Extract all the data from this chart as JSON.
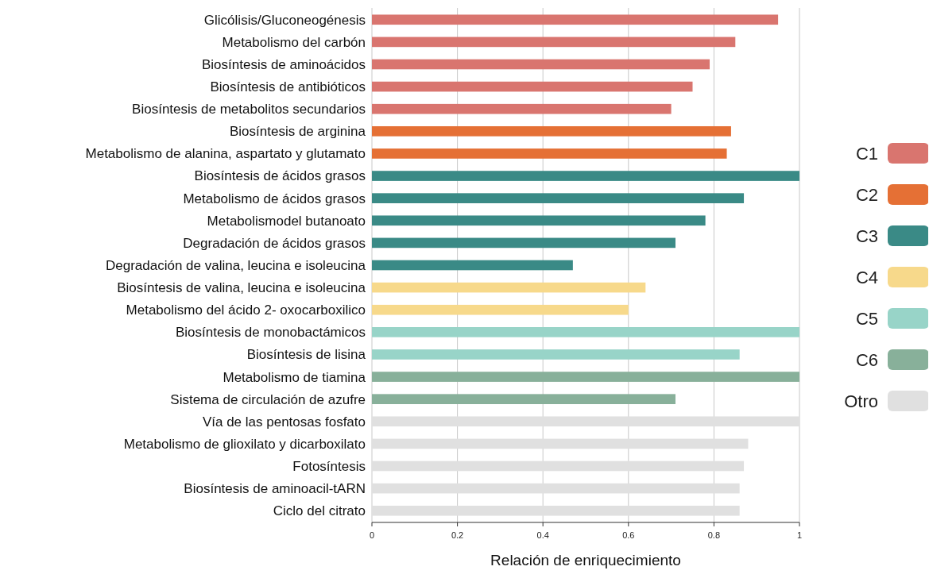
{
  "chart_data": {
    "type": "bar",
    "orientation": "horizontal",
    "xlabel": "Relación de enriquecimiento",
    "categories": [
      "Glicólisis/Gluconeogénesis",
      "Metabolismo del carbón",
      "Biosíntesis de aminoácidos",
      "Biosíntesis de antibióticos",
      "Biosíntesis de metabolitos secundarios",
      "Biosíntesis de arginina",
      "Metabolismo de alanina, aspartato y glutamato",
      "Biosíntesis de ácidos grasos",
      "Metabolismo de ácidos grasos",
      "Metabolismodel butanoato",
      "Degradación de ácidos grasos",
      "Degradación de valina, leucina e isoleucina",
      "Biosíntesis de valina, leucina e isoleucina",
      "Metabolismo del ácido 2- oxocarboxilico",
      "Biosíntesis de monobactámicos",
      "Biosíntesis de lisina",
      "Metabolismo de tiamina",
      "Sistema de circulación de azufre",
      "Vía de las pentosas fosfato",
      "Metabolismo de glioxilato y dicarboxilato",
      "Fotosíntesis",
      "Biosíntesis de aminoacil-tARN",
      "Ciclo del citrato"
    ],
    "series": [
      {
        "name": "C1",
        "color": "#d9756f",
        "values": [
          0.95,
          0.85,
          0.79,
          0.75,
          0.7,
          null,
          null,
          null,
          null,
          null,
          null,
          null,
          null,
          null,
          null,
          null,
          null,
          null,
          null,
          null,
          null,
          null,
          null
        ]
      },
      {
        "name": "C2",
        "color": "#e57035",
        "values": [
          null,
          null,
          null,
          null,
          null,
          0.84,
          0.83,
          null,
          null,
          null,
          null,
          null,
          null,
          null,
          null,
          null,
          null,
          null,
          null,
          null,
          null,
          null,
          null
        ]
      },
      {
        "name": "C3",
        "color": "#3a8a86",
        "values": [
          null,
          null,
          null,
          null,
          null,
          null,
          null,
          1,
          0.87,
          0.78,
          0.71,
          0.47,
          null,
          null,
          null,
          null,
          null,
          null,
          null,
          null,
          null,
          null,
          null
        ]
      },
      {
        "name": "C4",
        "color": "#f7d98b",
        "values": [
          null,
          null,
          null,
          null,
          null,
          null,
          null,
          null,
          null,
          null,
          null,
          null,
          0.64,
          0.6,
          null,
          null,
          null,
          null,
          null,
          null,
          null,
          null,
          null
        ]
      },
      {
        "name": "C5",
        "color": "#98d4c8",
        "values": [
          null,
          null,
          null,
          null,
          null,
          null,
          null,
          null,
          null,
          null,
          null,
          null,
          null,
          null,
          1,
          0.86,
          null,
          null,
          null,
          null,
          null,
          null,
          null
        ]
      },
      {
        "name": "C6",
        "color": "#88b09a",
        "values": [
          null,
          null,
          null,
          null,
          null,
          null,
          null,
          null,
          null,
          null,
          null,
          null,
          null,
          null,
          null,
          null,
          1,
          0.71,
          null,
          null,
          null,
          null,
          null
        ]
      },
      {
        "name": "Otro",
        "color": "#e0e0e0",
        "values": [
          null,
          null,
          null,
          null,
          null,
          null,
          null,
          null,
          null,
          null,
          null,
          null,
          null,
          null,
          null,
          null,
          null,
          null,
          1,
          0.88,
          0.87,
          0.86,
          0.86
        ]
      }
    ],
    "xlim": [
      0,
      1
    ],
    "xticks": [
      0,
      0.2,
      0.4,
      0.6,
      0.8,
      1
    ],
    "grid": "x",
    "legend": "right"
  }
}
